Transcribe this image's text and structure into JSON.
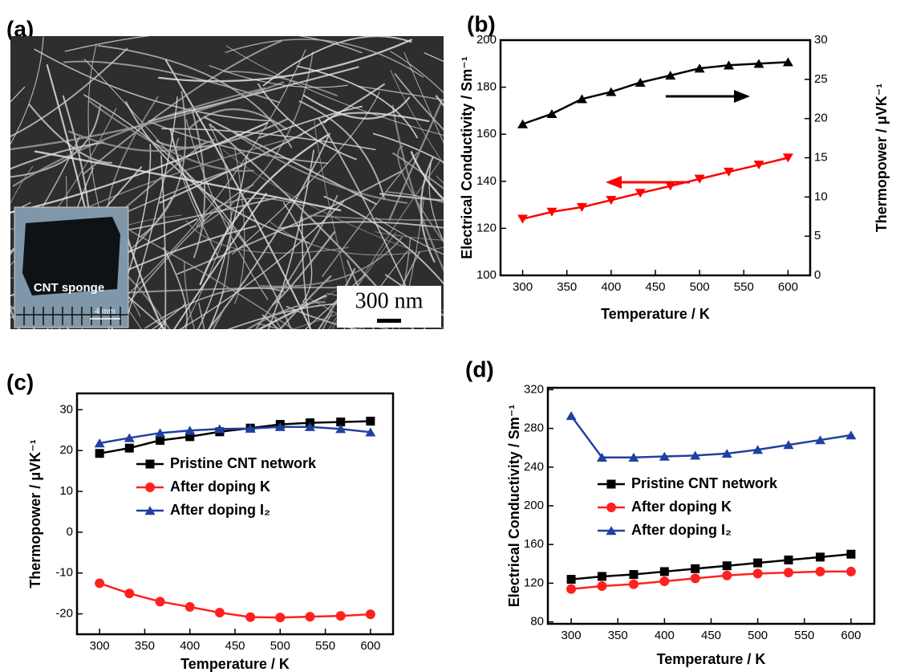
{
  "image_panel": {
    "label": "(a)",
    "inset_label": "CNT sponge",
    "inset_scale": "4 mm",
    "scale_bar": "300 nm"
  },
  "chart_data": [
    {
      "type": "line",
      "panel_label": "(b)",
      "xlabel": "Temperature / K",
      "ylabel": "Electrical Conductivity / Sm⁻¹",
      "y2label": "Thermopower / μVK⁻¹",
      "x": [
        300,
        333,
        367,
        400,
        433,
        467,
        500,
        533,
        567,
        600
      ],
      "xlim": [
        275,
        625
      ],
      "xticks": [
        300,
        350,
        400,
        450,
        500,
        550,
        600
      ],
      "ylim": [
        100,
        200
      ],
      "yticks": [
        100,
        120,
        140,
        160,
        180,
        200
      ],
      "y2lim": [
        0,
        30
      ],
      "y2ticks": [
        0,
        5,
        10,
        15,
        20,
        25,
        30
      ],
      "series": [
        {
          "color": "#000000",
          "marker": "triangle-up",
          "axis": "y2",
          "values": [
            19.3,
            20.6,
            22.5,
            23.4,
            24.6,
            25.5,
            26.4,
            26.8,
            27.0,
            27.2
          ]
        },
        {
          "color": "#ff0000",
          "marker": "triangle-down",
          "values": [
            124,
            127,
            129,
            132,
            135,
            138,
            141,
            144,
            147,
            150
          ]
        }
      ]
    },
    {
      "type": "line",
      "panel_label": "(c)",
      "xlabel": "Temperature / K",
      "ylabel": "Thermopower / μVK⁻¹",
      "x": [
        300,
        333,
        367,
        400,
        433,
        467,
        500,
        533,
        567,
        600
      ],
      "xlim": [
        275,
        625
      ],
      "xticks": [
        300,
        350,
        400,
        450,
        500,
        550,
        600
      ],
      "ylim": [
        -25,
        34
      ],
      "yticks": [
        -20,
        -10,
        0,
        10,
        20,
        30
      ],
      "series": [
        {
          "name": "Pristine CNT network",
          "color": "#000000",
          "marker": "square",
          "values": [
            19.3,
            20.6,
            22.5,
            23.4,
            24.6,
            25.5,
            26.4,
            26.8,
            27.0,
            27.2
          ]
        },
        {
          "name": "After doping K",
          "color": "#ff2020",
          "marker": "circle",
          "values": [
            -12.5,
            -15.0,
            -17.0,
            -18.3,
            -19.7,
            -20.8,
            -20.9,
            -20.7,
            -20.5,
            -20.1
          ]
        },
        {
          "name": "After doping I₂",
          "color": "#2040a0",
          "marker": "triangle-up",
          "values": [
            21.8,
            23.1,
            24.3,
            24.9,
            25.3,
            25.4,
            25.8,
            25.8,
            25.3,
            24.5
          ]
        }
      ]
    },
    {
      "type": "line",
      "panel_label": "(d)",
      "xlabel": "Temperature / K",
      "ylabel": "Electrical Conductivity / Sm⁻¹",
      "x": [
        300,
        333,
        367,
        400,
        433,
        467,
        500,
        533,
        567,
        600
      ],
      "xlim": [
        275,
        625
      ],
      "xticks": [
        300,
        350,
        400,
        450,
        500,
        550,
        600
      ],
      "ylim": [
        78,
        322
      ],
      "yticks": [
        80,
        120,
        160,
        200,
        240,
        280,
        320
      ],
      "series": [
        {
          "name": "Pristine CNT network",
          "color": "#000000",
          "marker": "square",
          "values": [
            124,
            127,
            129,
            132,
            135,
            138,
            141,
            144,
            147,
            150
          ]
        },
        {
          "name": "After doping K",
          "color": "#ff2020",
          "marker": "circle",
          "values": [
            114,
            117,
            119,
            122,
            125,
            128,
            130,
            131,
            132,
            132
          ]
        },
        {
          "name": "After doping I₂",
          "color": "#2040a0",
          "marker": "triangle-up",
          "values": [
            293,
            250,
            250,
            251,
            252,
            254,
            258,
            263,
            268,
            273
          ]
        }
      ]
    }
  ]
}
